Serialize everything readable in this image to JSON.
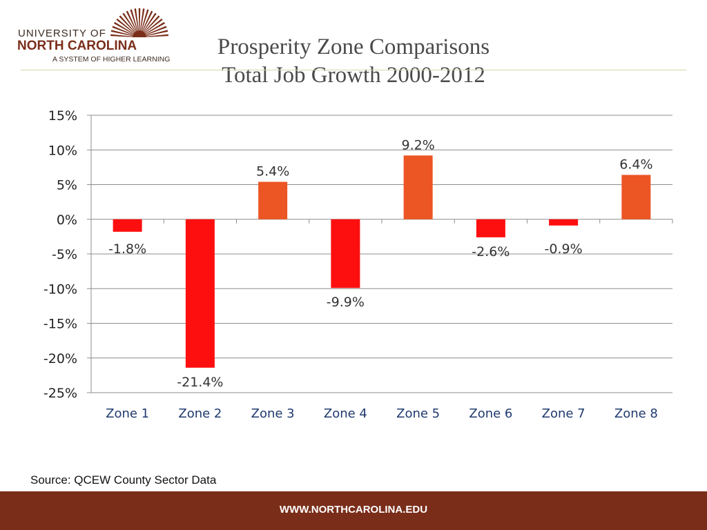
{
  "logo": {
    "line1": "UNIVERSITY OF",
    "line2": "NORTH CAROLINA",
    "line3": "A SYSTEM OF HIGHER LEARNING",
    "icon": "sunburst-logo-icon"
  },
  "title": {
    "line1": "Prosperity Zone Comparisons",
    "line2": "Total Job Growth 2000-2012"
  },
  "source": "Source: QCEW County Sector Data",
  "footer": {
    "url": "WWW.NORTHCAROLINA.EDU"
  },
  "colors": {
    "positive_bar": "#ec5524",
    "negative_bar": "#fe0f0f",
    "brand": "#7a2e1a"
  },
  "chart_data": {
    "type": "bar",
    "title": "",
    "xlabel": "",
    "ylabel": "",
    "categories": [
      "Zone 1",
      "Zone 2",
      "Zone 3",
      "Zone 4",
      "Zone 5",
      "Zone 6",
      "Zone 7",
      "Zone 8"
    ],
    "values": [
      -1.8,
      -21.4,
      5.4,
      -9.9,
      9.2,
      -2.6,
      -0.9,
      6.4
    ],
    "data_labels": [
      "-1.8%",
      "-21.4%",
      "5.4%",
      "-9.9%",
      "9.2%",
      "-2.6%",
      "-0.9%",
      "6.4%"
    ],
    "ylim": [
      -25,
      15
    ],
    "yticks": [
      15,
      10,
      5,
      0,
      -5,
      -10,
      -15,
      -20,
      -25
    ],
    "ytick_labels": [
      "15%",
      "10%",
      "5%",
      "0%",
      "-5%",
      "-10%",
      "-15%",
      "-20%",
      "-25%"
    ],
    "grid": true,
    "legend": "none"
  }
}
